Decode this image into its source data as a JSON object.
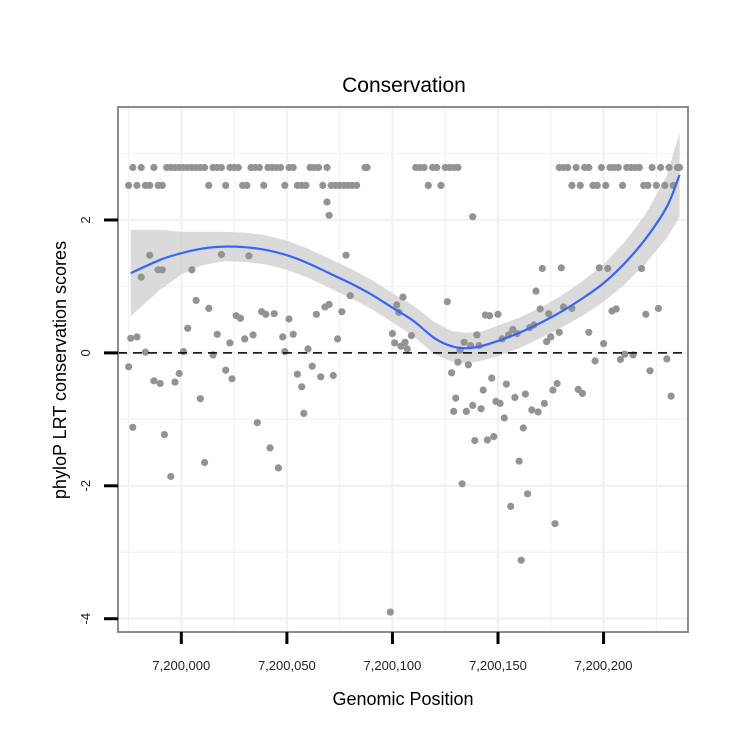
{
  "chart_data": {
    "type": "scatter",
    "title": "Conservation",
    "xlabel": "Genomic Position",
    "ylabel": "phyloP LRT conservation scores",
    "xlim": [
      7199970,
      7200240
    ],
    "ylim": [
      -4.2,
      3.7
    ],
    "x_ticks": [
      {
        "value": 7200000,
        "label": "7,200,000"
      },
      {
        "value": 7200050,
        "label": "7,200,050"
      },
      {
        "value": 7200100,
        "label": "7,200,100"
      },
      {
        "value": 7200150,
        "label": "7,200,150"
      },
      {
        "value": 7200200,
        "label": "7,200,200"
      }
    ],
    "y_ticks": [
      {
        "value": 2,
        "label": "2"
      },
      {
        "value": 0,
        "label": "0"
      },
      {
        "value": -2,
        "label": "-2"
      },
      {
        "value": -4,
        "label": "-4"
      }
    ],
    "grid": true,
    "reference_line": {
      "y": 0,
      "style": "dashed"
    },
    "colors": {
      "points": "#939393",
      "smooth": "#3366ff",
      "band": "#d3d3d3",
      "border": "#7f7f7f",
      "grid": "#f2f2f2"
    },
    "smooth_curve": {
      "x": [
        7199976,
        7199990,
        7200000,
        7200010,
        7200020,
        7200030,
        7200040,
        7200050,
        7200060,
        7200070,
        7200080,
        7200090,
        7200100,
        7200110,
        7200120,
        7200128,
        7200135,
        7200142,
        7200150,
        7200160,
        7200170,
        7200180,
        7200190,
        7200200,
        7200210,
        7200220,
        7200230,
        7200236
      ],
      "y": [
        1.2,
        1.4,
        1.5,
        1.57,
        1.6,
        1.59,
        1.55,
        1.47,
        1.35,
        1.2,
        1.05,
        0.88,
        0.68,
        0.48,
        0.22,
        0.1,
        0.07,
        0.1,
        0.18,
        0.3,
        0.45,
        0.62,
        0.82,
        1.05,
        1.35,
        1.72,
        2.2,
        2.68
      ],
      "lower": [
        0.55,
        0.95,
        1.18,
        1.32,
        1.38,
        1.37,
        1.33,
        1.25,
        1.13,
        0.98,
        0.83,
        0.66,
        0.46,
        0.25,
        -0.02,
        -0.13,
        -0.16,
        -0.12,
        -0.05,
        0.07,
        0.22,
        0.38,
        0.56,
        0.77,
        1.03,
        1.35,
        1.73,
        2.05
      ],
      "upper": [
        1.85,
        1.85,
        1.82,
        1.82,
        1.82,
        1.81,
        1.77,
        1.69,
        1.57,
        1.42,
        1.27,
        1.1,
        0.9,
        0.71,
        0.46,
        0.33,
        0.3,
        0.32,
        0.41,
        0.53,
        0.68,
        0.86,
        1.08,
        1.33,
        1.67,
        2.09,
        2.67,
        3.31
      ]
    },
    "points": [
      [
        7199975,
        2.52
      ],
      [
        7199977,
        2.79
      ],
      [
        7199979,
        2.52
      ],
      [
        7199981,
        2.79
      ],
      [
        7199983,
        2.52
      ],
      [
        7199985,
        2.52
      ],
      [
        7199987,
        2.79
      ],
      [
        7199989,
        2.52
      ],
      [
        7199991,
        2.52
      ],
      [
        7199993,
        2.79
      ],
      [
        7199995,
        2.79
      ],
      [
        7199997,
        2.79
      ],
      [
        7199999,
        2.79
      ],
      [
        7200001,
        2.79
      ],
      [
        7200003,
        2.79
      ],
      [
        7200005,
        2.79
      ],
      [
        7200007,
        2.79
      ],
      [
        7200009,
        2.79
      ],
      [
        7200011,
        2.79
      ],
      [
        7200013,
        2.52
      ],
      [
        7200015,
        2.79
      ],
      [
        7200017,
        2.79
      ],
      [
        7200019,
        2.79
      ],
      [
        7200021,
        2.52
      ],
      [
        7200023,
        2.79
      ],
      [
        7200025,
        2.79
      ],
      [
        7200027,
        2.79
      ],
      [
        7200029,
        2.52
      ],
      [
        7200031,
        2.52
      ],
      [
        7200033,
        2.79
      ],
      [
        7200035,
        2.79
      ],
      [
        7200037,
        2.79
      ],
      [
        7200039,
        2.52
      ],
      [
        7200041,
        2.79
      ],
      [
        7200043,
        2.79
      ],
      [
        7200045,
        2.79
      ],
      [
        7200047,
        2.79
      ],
      [
        7200049,
        2.52
      ],
      [
        7200051,
        2.79
      ],
      [
        7200053,
        2.79
      ],
      [
        7200055,
        2.52
      ],
      [
        7200057,
        2.52
      ],
      [
        7200059,
        2.52
      ],
      [
        7200061,
        2.79
      ],
      [
        7200063,
        2.79
      ],
      [
        7200065,
        2.79
      ],
      [
        7200067,
        2.52
      ],
      [
        7200069,
        2.79
      ],
      [
        7200071,
        2.52
      ],
      [
        7200073,
        2.52
      ],
      [
        7200075,
        2.52
      ],
      [
        7200077,
        2.52
      ],
      [
        7200079,
        2.52
      ],
      [
        7200081,
        2.52
      ],
      [
        7200083,
        2.52
      ],
      [
        7200087,
        2.79
      ],
      [
        7200088,
        2.79
      ],
      [
        7200111,
        2.79
      ],
      [
        7200113,
        2.79
      ],
      [
        7200115,
        2.79
      ],
      [
        7200117,
        2.52
      ],
      [
        7200119,
        2.79
      ],
      [
        7200121,
        2.79
      ],
      [
        7200123,
        2.52
      ],
      [
        7200125,
        2.79
      ],
      [
        7200127,
        2.79
      ],
      [
        7200129,
        2.79
      ],
      [
        7200131,
        2.79
      ],
      [
        7200179,
        2.79
      ],
      [
        7200181,
        2.79
      ],
      [
        7200183,
        2.79
      ],
      [
        7200185,
        2.52
      ],
      [
        7200187,
        2.79
      ],
      [
        7200189,
        2.52
      ],
      [
        7200191,
        2.79
      ],
      [
        7200193,
        2.79
      ],
      [
        7200195,
        2.52
      ],
      [
        7200197,
        2.52
      ],
      [
        7200199,
        2.79
      ],
      [
        7200201,
        2.52
      ],
      [
        7200203,
        2.79
      ],
      [
        7200205,
        2.79
      ],
      [
        7200207,
        2.79
      ],
      [
        7200209,
        2.52
      ],
      [
        7200211,
        2.79
      ],
      [
        7200213,
        2.79
      ],
      [
        7200215,
        2.79
      ],
      [
        7200217,
        2.79
      ],
      [
        7200219,
        2.52
      ],
      [
        7200221,
        2.52
      ],
      [
        7200223,
        2.79
      ],
      [
        7200225,
        2.52
      ],
      [
        7200227,
        2.79
      ],
      [
        7200229,
        2.52
      ],
      [
        7200231,
        2.79
      ],
      [
        7200233,
        2.52
      ],
      [
        7200235,
        2.79
      ],
      [
        7200236,
        2.79
      ],
      [
        7200069,
        2.27
      ],
      [
        7200070,
        2.07
      ],
      [
        7200138,
        2.05
      ],
      [
        7199975,
        -0.21
      ],
      [
        7199977,
        -1.12
      ],
      [
        7199976,
        0.22
      ],
      [
        7199979,
        0.24
      ],
      [
        7199981,
        1.14
      ],
      [
        7199983,
        0.01
      ],
      [
        7199985,
        1.47
      ],
      [
        7199987,
        -0.42
      ],
      [
        7199989,
        1.25
      ],
      [
        7199990,
        -0.46
      ],
      [
        7199991,
        1.25
      ],
      [
        7199992,
        -1.23
      ],
      [
        7199995,
        -1.86
      ],
      [
        7199997,
        -0.44
      ],
      [
        7199999,
        -0.31
      ],
      [
        7200001,
        0.02
      ],
      [
        7200003,
        0.37
      ],
      [
        7200005,
        1.25
      ],
      [
        7200007,
        0.79
      ],
      [
        7200009,
        -0.69
      ],
      [
        7200011,
        -1.65
      ],
      [
        7200013,
        0.67
      ],
      [
        7200015,
        -0.03
      ],
      [
        7200017,
        0.28
      ],
      [
        7200019,
        1.48
      ],
      [
        7200021,
        -0.26
      ],
      [
        7200023,
        0.15
      ],
      [
        7200024,
        -0.39
      ],
      [
        7200026,
        0.56
      ],
      [
        7200028,
        0.52
      ],
      [
        7200030,
        0.21
      ],
      [
        7200032,
        1.46
      ],
      [
        7200034,
        0.27
      ],
      [
        7200036,
        -1.05
      ],
      [
        7200038,
        0.62
      ],
      [
        7200040,
        0.58
      ],
      [
        7200042,
        -1.43
      ],
      [
        7200044,
        0.59
      ],
      [
        7200046,
        -1.73
      ],
      [
        7200048,
        0.24
      ],
      [
        7200049,
        0.02
      ],
      [
        7200051,
        0.51
      ],
      [
        7200053,
        0.28
      ],
      [
        7200055,
        -0.32
      ],
      [
        7200057,
        -0.51
      ],
      [
        7200058,
        -0.91
      ],
      [
        7200060,
        0.06
      ],
      [
        7200062,
        -0.2
      ],
      [
        7200064,
        0.58
      ],
      [
        7200066,
        -0.36
      ],
      [
        7200068,
        0.69
      ],
      [
        7200070,
        0.73
      ],
      [
        7200072,
        -0.34
      ],
      [
        7200074,
        0.21
      ],
      [
        7200076,
        0.62
      ],
      [
        7200078,
        1.47
      ],
      [
        7200080,
        0.86
      ],
      [
        7200099,
        -3.9
      ],
      [
        7200100,
        0.29
      ],
      [
        7200101,
        0.15
      ],
      [
        7200102,
        0.72
      ],
      [
        7200103,
        0.61
      ],
      [
        7200104,
        0.1
      ],
      [
        7200105,
        0.84
      ],
      [
        7200106,
        0.16
      ],
      [
        7200107,
        0.06
      ],
      [
        7200109,
        0.26
      ],
      [
        7200126,
        0.77
      ],
      [
        7200128,
        -0.3
      ],
      [
        7200129,
        -0.88
      ],
      [
        7200130,
        -0.68
      ],
      [
        7200131,
        -0.14
      ],
      [
        7200132,
        0.04
      ],
      [
        7200133,
        -1.97
      ],
      [
        7200134,
        0.16
      ],
      [
        7200135,
        -0.88
      ],
      [
        7200136,
        -0.18
      ],
      [
        7200137,
        0.11
      ],
      [
        7200138,
        -0.79
      ],
      [
        7200139,
        -1.32
      ],
      [
        7200140,
        0.27
      ],
      [
        7200141,
        0.11
      ],
      [
        7200142,
        -0.84
      ],
      [
        7200143,
        -0.56
      ],
      [
        7200144,
        0.57
      ],
      [
        7200145,
        -1.31
      ],
      [
        7200146,
        0.56
      ],
      [
        7200147,
        -0.38
      ],
      [
        7200148,
        -1.26
      ],
      [
        7200149,
        -0.73
      ],
      [
        7200150,
        0.58
      ],
      [
        7200151,
        -0.76
      ],
      [
        7200152,
        0.21
      ],
      [
        7200153,
        -0.98
      ],
      [
        7200154,
        -0.47
      ],
      [
        7200155,
        0.27
      ],
      [
        7200156,
        -2.31
      ],
      [
        7200157,
        0.35
      ],
      [
        7200158,
        -0.67
      ],
      [
        7200159,
        0.29
      ],
      [
        7200160,
        -1.63
      ],
      [
        7200161,
        -3.12
      ],
      [
        7200162,
        -1.13
      ],
      [
        7200163,
        -0.62
      ],
      [
        7200164,
        -2.12
      ],
      [
        7200165,
        0.38
      ],
      [
        7200166,
        -0.86
      ],
      [
        7200167,
        0.42
      ],
      [
        7200168,
        0.93
      ],
      [
        7200169,
        -0.89
      ],
      [
        7200170,
        0.66
      ],
      [
        7200171,
        1.27
      ],
      [
        7200172,
        -0.76
      ],
      [
        7200173,
        0.17
      ],
      [
        7200174,
        0.59
      ],
      [
        7200175,
        0.24
      ],
      [
        7200176,
        -0.56
      ],
      [
        7200177,
        -2.57
      ],
      [
        7200178,
        -0.46
      ],
      [
        7200179,
        0.31
      ],
      [
        7200180,
        1.28
      ],
      [
        7200181,
        0.69
      ],
      [
        7200185,
        0.67
      ],
      [
        7200188,
        -0.55
      ],
      [
        7200190,
        -0.61
      ],
      [
        7200193,
        0.31
      ],
      [
        7200196,
        -0.12
      ],
      [
        7200198,
        1.28
      ],
      [
        7200200,
        0.14
      ],
      [
        7200202,
        1.27
      ],
      [
        7200204,
        0.63
      ],
      [
        7200206,
        0.66
      ],
      [
        7200208,
        -0.1
      ],
      [
        7200210,
        -0.02
      ],
      [
        7200214,
        -0.03
      ],
      [
        7200218,
        1.27
      ],
      [
        7200220,
        0.58
      ],
      [
        7200222,
        -0.27
      ],
      [
        7200226,
        0.67
      ],
      [
        7200230,
        -0.09
      ],
      [
        7200232,
        -0.65
      ]
    ]
  }
}
